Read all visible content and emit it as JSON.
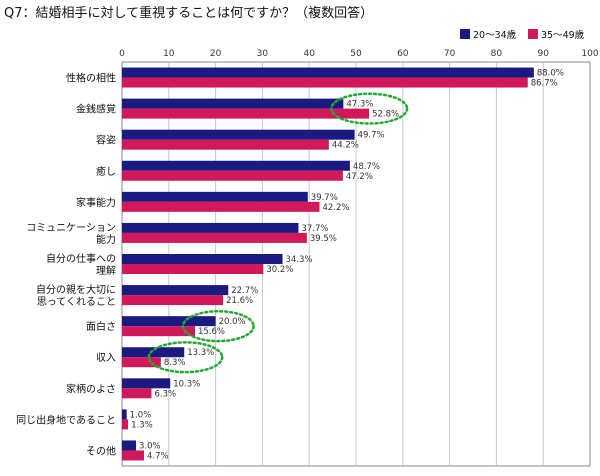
{
  "chart_data": {
    "type": "bar",
    "orientation": "horizontal",
    "title": "Q7：結婚相手に対して重視することは何ですか？（複数回答）",
    "xlim": [
      0,
      100
    ],
    "xticks": [
      0,
      10,
      20,
      30,
      40,
      50,
      60,
      70,
      80,
      90,
      100
    ],
    "grid": true,
    "legend_position": "top-right",
    "categories": [
      [
        "性格の相性"
      ],
      [
        "金銭感覚"
      ],
      [
        "容姿"
      ],
      [
        "癒し"
      ],
      [
        "家事能力"
      ],
      [
        "コミュニケーション",
        "能力"
      ],
      [
        "自分の仕事への",
        "理解"
      ],
      [
        "自分の親を大切に",
        "思ってくれること"
      ],
      [
        "面白さ"
      ],
      [
        "収入"
      ],
      [
        "家柄のよさ"
      ],
      [
        "同じ出身地であること"
      ],
      [
        "その他"
      ]
    ],
    "series": [
      {
        "name": "20～34歳",
        "color": "#1a1a80",
        "values": [
          88.0,
          47.3,
          49.7,
          48.7,
          39.7,
          37.7,
          34.3,
          22.7,
          20.0,
          13.3,
          10.3,
          1.0,
          3.0
        ],
        "labels": [
          "88.0%",
          "47.3%",
          "49.7%",
          "48.7%",
          "39.7%",
          "37.7%",
          "34.3%",
          "22.7%",
          "20.0%",
          "13.3%",
          "10.3%",
          "1.0%",
          "3.0%"
        ]
      },
      {
        "name": "35～49歳",
        "color": "#d0185a",
        "values": [
          86.7,
          52.8,
          44.2,
          47.2,
          42.2,
          39.5,
          30.2,
          21.6,
          15.6,
          8.3,
          6.3,
          1.3,
          4.7
        ],
        "labels": [
          "86.7%",
          "52.8%",
          "44.2%",
          "47.2%",
          "42.2%",
          "39.5%",
          "30.2%",
          "21.6%",
          "15.6%",
          "8.3%",
          "6.3%",
          "1.3%",
          "4.7%"
        ]
      }
    ],
    "highlights": [
      {
        "category_index": 1,
        "color": "#22aa33"
      },
      {
        "category_index": 8,
        "color": "#22aa33"
      },
      {
        "category_index": 9,
        "color": "#22aa33"
      }
    ]
  }
}
